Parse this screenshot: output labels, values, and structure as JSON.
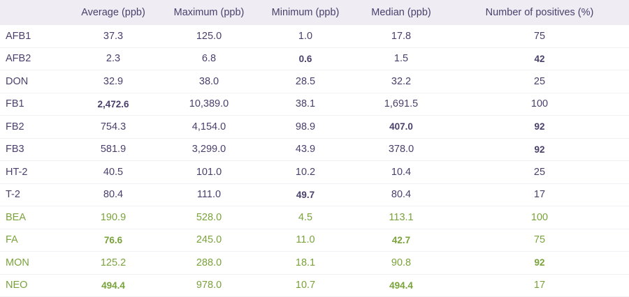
{
  "headers": [
    "",
    "Average (ppb)",
    "Maximum (ppb)",
    "Minimum (ppb)",
    "Median (ppb)",
    "Number of positives (%)"
  ],
  "rows": [
    {
      "name": "AFB1",
      "cells": [
        "37.3",
        "125.0",
        "1.0",
        "17.8",
        "75"
      ],
      "bold": [],
      "group": "purple"
    },
    {
      "name": "AFB2",
      "cells": [
        "2.3",
        "6.8",
        "0.6",
        "1.5",
        "42"
      ],
      "bold": [
        2,
        4
      ],
      "group": "purple"
    },
    {
      "name": "DON",
      "cells": [
        "32.9",
        "38.0",
        "28.5",
        "32.2",
        "25"
      ],
      "bold": [],
      "group": "purple"
    },
    {
      "name": "FB1",
      "cells": [
        "2,472.6",
        "10,389.0",
        "38.1",
        "1,691.5",
        "100"
      ],
      "bold": [
        0
      ],
      "group": "purple"
    },
    {
      "name": "FB2",
      "cells": [
        "754.3",
        "4,154.0",
        "98.9",
        "407.0",
        "92"
      ],
      "bold": [
        3,
        4
      ],
      "group": "purple"
    },
    {
      "name": "FB3",
      "cells": [
        "581.9",
        "3,299.0",
        "43.9",
        "378.0",
        "92"
      ],
      "bold": [
        4
      ],
      "group": "purple"
    },
    {
      "name": "HT-2",
      "cells": [
        "40.5",
        "101.0",
        "10.2",
        "10.4",
        "25"
      ],
      "bold": [],
      "group": "purple"
    },
    {
      "name": "T-2",
      "cells": [
        "80.4",
        "111.0",
        "49.7",
        "80.4",
        "17"
      ],
      "bold": [
        2
      ],
      "group": "purple"
    },
    {
      "name": "BEA",
      "cells": [
        "190.9",
        "528.0",
        "4.5",
        "113.1",
        "100"
      ],
      "bold": [],
      "group": "green"
    },
    {
      "name": "FA",
      "cells": [
        "76.6",
        "245.0",
        "11.0",
        "42.7",
        "75"
      ],
      "bold": [
        0,
        3
      ],
      "group": "green"
    },
    {
      "name": "MON",
      "cells": [
        "125.2",
        "288.0",
        "18.1",
        "90.8",
        "92"
      ],
      "bold": [
        4
      ],
      "group": "green"
    },
    {
      "name": "NEO",
      "cells": [
        "494.4",
        "978.0",
        "10.7",
        "494.4",
        "17"
      ],
      "bold": [
        0,
        3
      ],
      "group": "green"
    }
  ]
}
